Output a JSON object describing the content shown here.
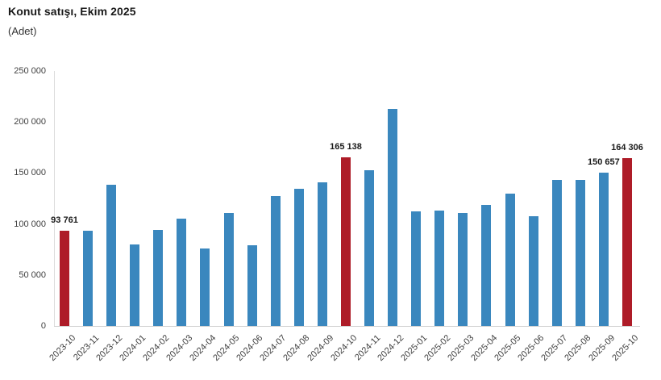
{
  "header": {
    "title": "Konut satışı, Ekim 2025",
    "subtitle": "(Adet)"
  },
  "colors": {
    "bar": "#3A87BE",
    "highlight": "#AE1C28",
    "axis_text": "#404040",
    "label_text": "#1A1A1A",
    "axis_line": "#DCDCDC"
  },
  "chart_data": {
    "type": "bar",
    "title": "Konut satışı, Ekim 2025",
    "ylabel": "(Adet)",
    "xlabel": "",
    "ylim": [
      0,
      250000
    ],
    "ytick_interval": 50000,
    "yticks": [
      "0",
      "50 000",
      "100 000",
      "150 000",
      "200 000",
      "250 000"
    ],
    "grid": false,
    "legend": "none",
    "categories": [
      "2023-10",
      "2023-11",
      "2023-12",
      "2024-01",
      "2024-02",
      "2024-03",
      "2024-04",
      "2024-05",
      "2024-06",
      "2024-07",
      "2024-08",
      "2024-09",
      "2024-10",
      "2024-11",
      "2024-12",
      "2025-01",
      "2025-02",
      "2025-03",
      "2025-04",
      "2025-05",
      "2025-06",
      "2025-07",
      "2025-08",
      "2025-09",
      "2025-10"
    ],
    "values": [
      93761,
      93178,
      138577,
      80308,
      93902,
      105476,
      75569,
      110588,
      79313,
      127088,
      134155,
      140919,
      165138,
      153014,
      212637,
      112173,
      112818,
      110795,
      118359,
      130025,
      107723,
      142858,
      143319,
      150657,
      164306
    ],
    "highlighted_categories": [
      "2023-10",
      "2024-10",
      "2025-10"
    ],
    "data_labels": [
      {
        "category": "2023-10",
        "text": "93 761"
      },
      {
        "category": "2024-10",
        "text": "165 138"
      },
      {
        "category": "2025-09",
        "text": "150 657"
      },
      {
        "category": "2025-10",
        "text": "164 306"
      }
    ]
  }
}
